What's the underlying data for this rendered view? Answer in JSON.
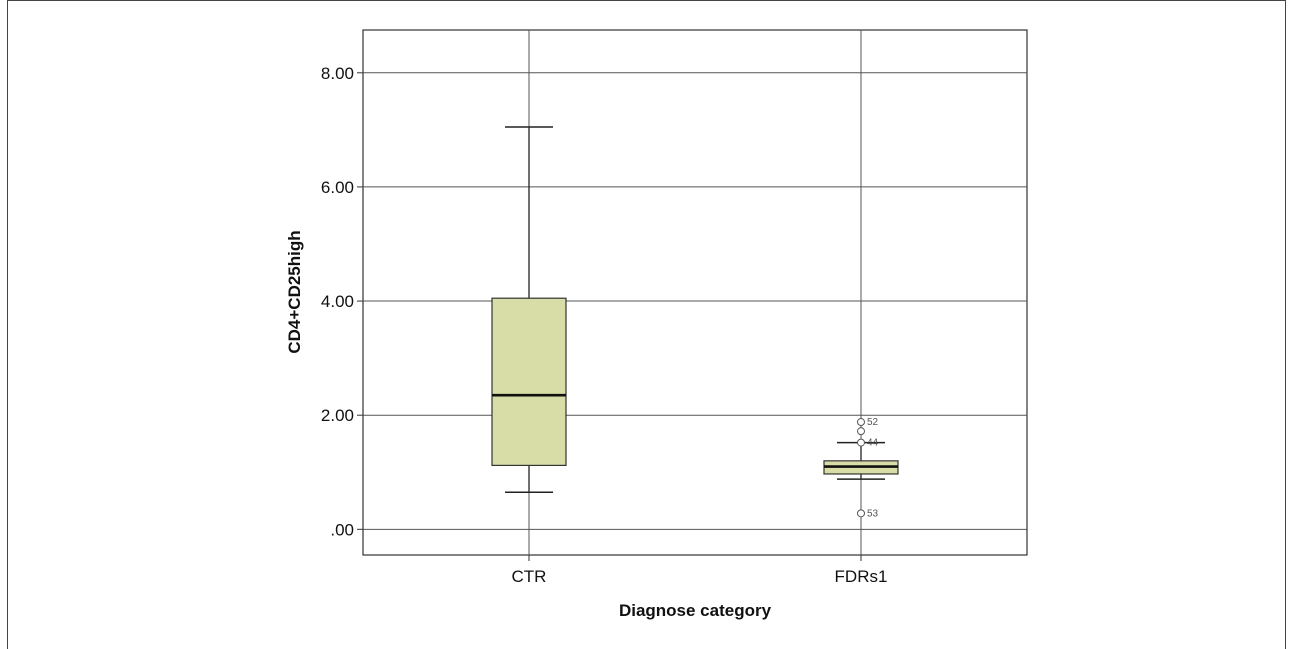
{
  "chart_data": {
    "type": "boxplot",
    "title": "",
    "xlabel": "Diagnose category",
    "ylabel": "CD4+CD25high",
    "ylim": [
      -0.45,
      8.75
    ],
    "yticks": [
      0,
      2,
      4,
      6,
      8
    ],
    "ytick_labels": [
      ".00",
      "2.00",
      "4.00",
      "6.00",
      "8.00"
    ],
    "grid": true,
    "box_color": "#d8dca6",
    "categories": [
      "CTR",
      "FDRs1"
    ],
    "boxes": [
      {
        "category": "CTR",
        "whisker_low": 0.65,
        "q1": 1.12,
        "median": 2.35,
        "q3": 4.05,
        "whisker_high": 7.05,
        "outliers": []
      },
      {
        "category": "FDRs1",
        "whisker_low": 0.88,
        "q1": 0.97,
        "median": 1.1,
        "q3": 1.2,
        "whisker_high": 1.52,
        "outliers": [
          {
            "value": 1.88,
            "label": "52"
          },
          {
            "value": 1.72,
            "label": ""
          },
          {
            "value": 1.52,
            "label": "44"
          },
          {
            "value": 0.28,
            "label": "53"
          }
        ]
      }
    ]
  }
}
